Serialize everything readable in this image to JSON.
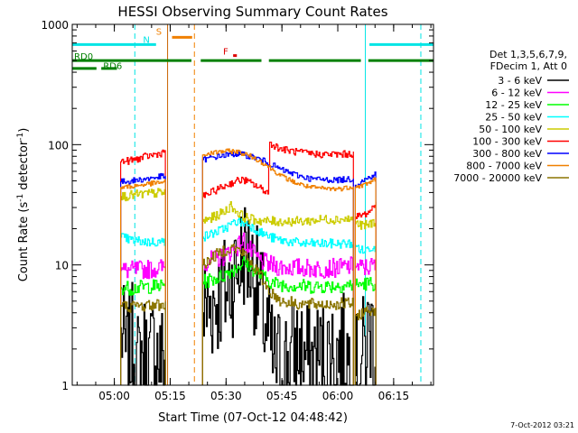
{
  "chart_data": {
    "type": "line",
    "title": "HESSI Observing Summary Count Rates",
    "xlabel": "Start Time (07-Oct-12 04:48:42)",
    "ylabel_prefix": "Count Rate (s",
    "ylabel_sup1": "-1",
    "ylabel_mid": " detector",
    "ylabel_sup2": "-1",
    "ylabel_suffix": ")",
    "x_unit": "minutes since 04:48:42",
    "xlim": [
      0,
      97
    ],
    "ylim": [
      1,
      1000
    ],
    "yscale": "log",
    "x_ticks": [
      {
        "x": 11.3,
        "label": "05:00"
      },
      {
        "x": 26.3,
        "label": "05:15"
      },
      {
        "x": 41.3,
        "label": "05:30"
      },
      {
        "x": 56.3,
        "label": "05:45"
      },
      {
        "x": 71.3,
        "label": "06:00"
      },
      {
        "x": 86.3,
        "label": "06:15"
      }
    ],
    "y_ticks": [
      {
        "y": 1,
        "label": "1"
      },
      {
        "y": 10,
        "label": "10"
      },
      {
        "y": 100,
        "label": "100"
      },
      {
        "y": 1000,
        "label": "1000"
      }
    ],
    "legend_header": [
      "Det 1,3,5,6,7,9,",
      "FDecim 1, Att 0"
    ],
    "legend_placement": "right",
    "timestamp": "7-Oct-2012 03:21",
    "flags": [
      {
        "label": "N",
        "color": "#00e5e5",
        "y": 680,
        "segments": [
          [
            0,
            22.5
          ],
          [
            79.8,
            97
          ]
        ],
        "label_x": 19.0,
        "label_y": 700
      },
      {
        "label": "S",
        "color": "#f08000",
        "y": 780,
        "segments": [
          [
            26.8,
            32.2
          ]
        ],
        "label_x": 22.5,
        "label_y": 820
      },
      {
        "label": "F",
        "color": "#dd0000",
        "y": 550,
        "segments": [
          [
            43.2,
            44.2
          ]
        ],
        "label_x": 40.5,
        "label_y": 560
      },
      {
        "label": "RD0",
        "color": "#008000",
        "y": 500,
        "segments": [
          [
            0,
            32.0
          ],
          [
            34.5,
            50.8
          ],
          [
            52.8,
            77.5
          ],
          [
            79.5,
            97
          ]
        ],
        "label_x": 0.5,
        "label_y": 510
      },
      {
        "label": "RD6",
        "color": "#008000",
        "y": 430,
        "segments": [
          [
            0,
            6.5
          ],
          [
            7.8,
            12.0
          ]
        ],
        "label_x": 8.3,
        "label_y": 425
      }
    ],
    "vlines": [
      {
        "x": 0,
        "color": "#00e5e5",
        "style": "solid"
      },
      {
        "x": 16.8,
        "color": "#00e5e5",
        "style": "dashed"
      },
      {
        "x": 25.6,
        "color": "#c86400",
        "style": "solid"
      },
      {
        "x": 32.8,
        "color": "#f08000",
        "style": "dashed"
      },
      {
        "x": 78.7,
        "color": "#00e5e5",
        "style": "solid"
      },
      {
        "x": 93.6,
        "color": "#00e5e5",
        "style": "dashed"
      }
    ],
    "series": [
      {
        "name": "3 - 6 keV",
        "color": "#000000",
        "noise": 0.5,
        "segments": [
          [
            [
              13.0,
              3
            ],
            [
              14.5,
              1.6
            ],
            [
              16.0,
              2.3
            ],
            [
              17.5,
              1.4
            ],
            [
              19.0,
              2.0
            ],
            [
              20.5,
              1.5
            ],
            [
              22.0,
              2.2
            ],
            [
              23.5,
              1.6
            ],
            [
              25.0,
              1.8
            ]
          ],
          [
            [
              35.0,
              4
            ],
            [
              38.0,
              5
            ],
            [
              41.0,
              6
            ],
            [
              44.0,
              9
            ],
            [
              46.0,
              13
            ],
            [
              48.0,
              10
            ],
            [
              50.0,
              6
            ],
            [
              52.0,
              3
            ],
            [
              54.0,
              1.5
            ],
            [
              57.0,
              1.6
            ],
            [
              60.0,
              2.0
            ],
            [
              64.0,
              1.6
            ],
            [
              68.0,
              1.8
            ],
            [
              72.0,
              2.0
            ],
            [
              75.5,
              1.5
            ]
          ],
          [
            [
              76.0,
              1.2
            ],
            [
              78.0,
              1.8
            ],
            [
              80.0,
              3.0
            ],
            [
              81.5,
              2.0
            ]
          ]
        ]
      },
      {
        "name": "6 - 12 keV",
        "color": "#ff00ff",
        "noise": 0.08,
        "segments": [
          [
            [
              13.0,
              9.0
            ],
            [
              16.0,
              9.0
            ],
            [
              20.0,
              9.2
            ],
            [
              25.0,
              9.5
            ]
          ],
          [
            [
              35.0,
              10.5
            ],
            [
              40.0,
              11.5
            ],
            [
              44.0,
              14
            ],
            [
              46.0,
              16
            ],
            [
              47.0,
              14
            ],
            [
              50.0,
              11
            ],
            [
              53.0,
              10
            ],
            [
              56.0,
              9.6
            ],
            [
              60.0,
              9.5
            ],
            [
              66.0,
              9.3
            ],
            [
              72.0,
              9.5
            ],
            [
              75.5,
              9.8
            ]
          ],
          [
            [
              76.0,
              9.5
            ],
            [
              79.0,
              9.5
            ],
            [
              81.5,
              10.0
            ]
          ]
        ]
      },
      {
        "name": "12 - 25 keV",
        "color": "#00ff00",
        "noise": 0.06,
        "segments": [
          [
            [
              13.0,
              6.5
            ],
            [
              16.0,
              6.4
            ],
            [
              20.0,
              6.6
            ],
            [
              25.0,
              6.7
            ]
          ],
          [
            [
              35.0,
              7.2
            ],
            [
              40.0,
              8.0
            ],
            [
              44.0,
              9.5
            ],
            [
              46.0,
              10.5
            ],
            [
              48.0,
              9.5
            ],
            [
              51.0,
              8.0
            ],
            [
              54.0,
              7.0
            ],
            [
              58.0,
              6.8
            ],
            [
              64.0,
              6.6
            ],
            [
              70.0,
              6.7
            ],
            [
              75.5,
              6.8
            ]
          ],
          [
            [
              76.0,
              6.8
            ],
            [
              79.0,
              7.0
            ],
            [
              81.5,
              7.0
            ]
          ]
        ]
      },
      {
        "name": "25 - 50 keV",
        "color": "#00ffff",
        "noise": 0.04,
        "segments": [
          [
            [
              13.0,
              17
            ],
            [
              16.0,
              16
            ],
            [
              20.0,
              15.5
            ],
            [
              25.0,
              15.5
            ]
          ],
          [
            [
              35.0,
              17
            ],
            [
              40.0,
              19.5
            ],
            [
              44.0,
              23
            ],
            [
              47.0,
              22
            ],
            [
              50.0,
              19
            ],
            [
              53.0,
              17
            ],
            [
              56.0,
              16
            ],
            [
              62.0,
              15
            ],
            [
              68.0,
              15
            ],
            [
              75.5,
              15
            ]
          ],
          [
            [
              76.0,
              14.5
            ],
            [
              78.0,
              13
            ],
            [
              80.0,
              14
            ],
            [
              81.5,
              14
            ]
          ]
        ]
      },
      {
        "name": "50 - 100 keV",
        "color": "#cccc00",
        "noise": 0.04,
        "segments": [
          [
            [
              13.0,
              37
            ],
            [
              16.0,
              38
            ],
            [
              20.0,
              39
            ],
            [
              25.0,
              40
            ]
          ],
          [
            [
              35.0,
              23
            ],
            [
              38.0,
              25
            ],
            [
              41.0,
              28
            ],
            [
              42.5,
              31
            ],
            [
              44.0,
              28
            ],
            [
              46.0,
              25
            ],
            [
              48.0,
              24
            ],
            [
              52.0,
              23
            ],
            [
              56.0,
              23
            ],
            [
              62.0,
              23
            ],
            [
              68.0,
              24
            ],
            [
              75.5,
              24
            ]
          ],
          [
            [
              76.0,
              22
            ],
            [
              78.0,
              21
            ],
            [
              80.0,
              22
            ],
            [
              81.5,
              23
            ]
          ]
        ]
      },
      {
        "name": "100 - 300 keV",
        "color": "#ff0000",
        "noise": 0.03,
        "segments": [
          [
            [
              13.0,
              72
            ],
            [
              16.0,
              74
            ],
            [
              20.0,
              80
            ],
            [
              24.0,
              85
            ],
            [
              25.0,
              90
            ]
          ],
          [
            [
              35.0,
              37
            ],
            [
              40.0,
              44
            ],
            [
              44.0,
              50
            ],
            [
              46.0,
              51
            ],
            [
              49.0,
              46
            ],
            [
              52.5,
              40
            ],
            [
              53.0,
              103
            ],
            [
              56.0,
              92
            ],
            [
              60.0,
              87
            ],
            [
              66.0,
              83
            ],
            [
              72.0,
              83
            ],
            [
              75.5,
              84
            ]
          ],
          [
            [
              76.0,
              25
            ],
            [
              78.0,
              26
            ],
            [
              80.0,
              28
            ],
            [
              81.5,
              34
            ]
          ]
        ]
      },
      {
        "name": "300 - 800 keV",
        "color": "#0000ff",
        "noise": 0.025,
        "segments": [
          [
            [
              13.0,
              49
            ],
            [
              16.0,
              50
            ],
            [
              20.0,
              52
            ],
            [
              25.0,
              55
            ]
          ],
          [
            [
              35.0,
              75
            ],
            [
              40.0,
              81
            ],
            [
              44.0,
              84
            ],
            [
              48.0,
              80
            ],
            [
              52.0,
              72
            ],
            [
              56.0,
              62
            ],
            [
              60.0,
              56
            ],
            [
              64.0,
              52
            ],
            [
              68.0,
              51
            ],
            [
              72.0,
              51
            ],
            [
              75.5,
              52
            ]
          ],
          [
            [
              76.0,
              46
            ],
            [
              78.0,
              50
            ],
            [
              80.0,
              54
            ],
            [
              81.5,
              57
            ]
          ]
        ]
      },
      {
        "name": "800 - 7000 keV",
        "color": "#f08000",
        "noise": 0.02,
        "segments": [
          [
            [
              13.0,
              44
            ],
            [
              16.0,
              45
            ],
            [
              20.0,
              47
            ],
            [
              25.0,
              49
            ]
          ],
          [
            [
              35.0,
              82
            ],
            [
              40.0,
              88
            ],
            [
              44.0,
              88
            ],
            [
              48.0,
              80
            ],
            [
              52.0,
              68
            ],
            [
              56.0,
              55
            ],
            [
              60.0,
              48
            ],
            [
              64.0,
              44
            ],
            [
              68.0,
              43
            ],
            [
              72.0,
              43
            ],
            [
              75.5,
              45
            ]
          ],
          [
            [
              76.0,
              44
            ],
            [
              78.0,
              46
            ],
            [
              80.0,
              49
            ],
            [
              81.5,
              52
            ]
          ]
        ]
      },
      {
        "name": "7000 - 20000 keV",
        "color": "#8b7500",
        "noise": 0.05,
        "segments": [
          [
            [
              13.0,
              4.6
            ],
            [
              16.0,
              4.5
            ],
            [
              20.0,
              4.6
            ],
            [
              25.0,
              4.7
            ]
          ],
          [
            [
              35.0,
              10
            ],
            [
              40.0,
              13
            ],
            [
              43.0,
              14
            ],
            [
              46.0,
              12.5
            ],
            [
              50.0,
              8.5
            ],
            [
              53.0,
              6.0
            ],
            [
              56.0,
              5.0
            ],
            [
              62.0,
              4.7
            ],
            [
              68.0,
              4.7
            ],
            [
              75.5,
              4.8
            ]
          ],
          [
            [
              76.0,
              3.8
            ],
            [
              78.0,
              4.0
            ],
            [
              80.0,
              4.2
            ],
            [
              81.5,
              4.3
            ]
          ]
        ]
      }
    ]
  }
}
